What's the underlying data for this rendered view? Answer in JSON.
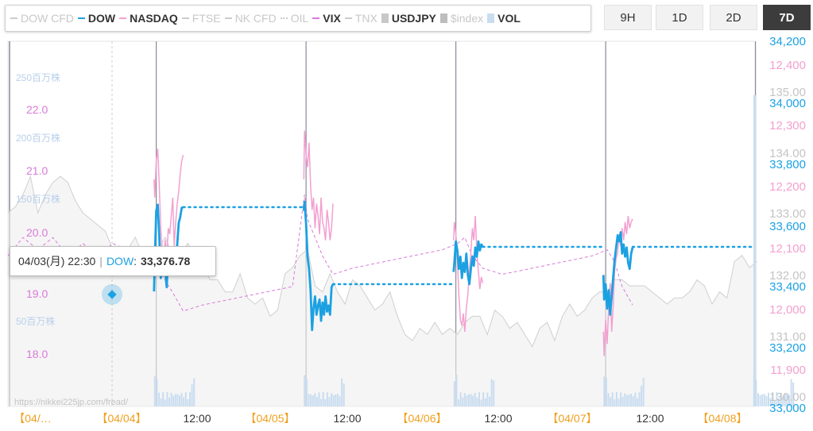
{
  "legend": [
    {
      "label": "DOW CFD",
      "color": "#cccccc",
      "style": "line",
      "active": false
    },
    {
      "label": "DOW",
      "color": "#1ba1e2",
      "style": "line",
      "active": true
    },
    {
      "label": "NASDAQ",
      "color": "#f3a0d0",
      "style": "line",
      "active": true
    },
    {
      "label": "FTSE",
      "color": "#cccccc",
      "style": "line",
      "active": false
    },
    {
      "label": "NK CFD",
      "color": "#cccccc",
      "style": "line",
      "active": false
    },
    {
      "label": "OIL",
      "color": "#cccccc",
      "style": "dot",
      "active": false
    },
    {
      "label": "VIX",
      "color": "#d97ad9",
      "style": "dash",
      "active": true
    },
    {
      "label": "TNX",
      "color": "#cccccc",
      "style": "dash",
      "active": false
    },
    {
      "label": "USDJPY",
      "color": "#c8c8c8",
      "style": "box",
      "active": true
    },
    {
      "label": "$index",
      "color": "#bdbdbd",
      "style": "box",
      "active": false
    },
    {
      "label": "VOL",
      "color": "#c9ddf0",
      "style": "box",
      "active": true
    }
  ],
  "range_buttons": [
    {
      "label": "9H",
      "active": false
    },
    {
      "label": "1D",
      "active": false
    },
    {
      "label": "2D",
      "active": false
    },
    {
      "label": "7D",
      "active": true
    }
  ],
  "tooltip": {
    "time": "04/03(月) 22:30",
    "series": "DOW",
    "value": "33,376.78"
  },
  "watermark": "https://nikkei225jp.com/fread/",
  "chart_data": {
    "type": "line",
    "x_ticks": [
      "【04/…",
      "【04/04】",
      "12:00",
      "【04/05】",
      "12:00",
      "【04/06】",
      "12:00",
      "【04/07】",
      "12:00",
      "【04/08】"
    ],
    "axes": {
      "dow": {
        "side": "right",
        "color": "#1ba1e2",
        "ticks": [
          "34,200",
          "34,000",
          "33,800",
          "33,600",
          "33,400",
          "33,200",
          "33,000"
        ],
        "range": [
          33000,
          34200
        ]
      },
      "nasdaq": {
        "side": "right",
        "color": "#f3a0d0",
        "ticks": [
          "12,400",
          "12,300",
          "12,200",
          "12,100",
          "12,000",
          "11,900"
        ],
        "range": [
          11900,
          12400
        ]
      },
      "usdjpy": {
        "side": "right",
        "color": "#c4c4c4",
        "ticks": [
          "135.00",
          "134.00",
          "133.00",
          "132.00",
          "131.00",
          "130.00"
        ],
        "range": [
          130,
          135
        ]
      },
      "vix": {
        "side": "left",
        "color": "#d97ad9",
        "ticks": [
          "22.0",
          "21.0",
          "20.0",
          "19.0",
          "18.0"
        ],
        "range": [
          18,
          22
        ]
      },
      "vol": {
        "side": "left",
        "color": "#b8d0ea",
        "ticks": [
          "250百万株",
          "200百万株",
          "150百万株",
          "50百万株"
        ]
      }
    },
    "series": [
      {
        "name": "DOW",
        "color": "#1ba1e2",
        "segments": [
          {
            "t": [
              0.975,
              0.98,
              0.99,
              1.0,
              1.01,
              1.02,
              1.03,
              1.04,
              1.05,
              1.06,
              1.07,
              1.08,
              1.09,
              1.1,
              1.11,
              1.12,
              1.13,
              1.14,
              1.15,
              1.16,
              1.17
            ],
            "v": [
              33376,
              33470,
              33640,
              33660,
              33560,
              33420,
              33480,
              33520,
              33440,
              33390,
              33500,
              33460,
              33430,
              33440,
              33490,
              33460,
              33530,
              33600,
              33620,
              33650,
              33652
            ]
          },
          {
            "t": [
              1.975,
              1.98,
              1.99,
              2.0,
              2.01,
              2.02,
              2.03,
              2.04,
              2.05,
              2.06,
              2.07,
              2.08,
              2.09,
              2.1,
              2.11,
              2.12,
              2.13,
              2.14,
              2.15,
              2.16,
              2.17
            ],
            "v": [
              33640,
              33670,
              33600,
              33490,
              33450,
              33380,
              33250,
              33320,
              33360,
              33300,
              33330,
              33350,
              33280,
              33340,
              33300,
              33360,
              33310,
              33330,
              33300,
              33390,
              33400
            ]
          },
          {
            "t": [
              2.975,
              2.98,
              2.99,
              3.0,
              3.01,
              3.02,
              3.03,
              3.04,
              3.05,
              3.06,
              3.07,
              3.08,
              3.09,
              3.1,
              3.11,
              3.12,
              3.13,
              3.14,
              3.15,
              3.16,
              3.17
            ],
            "v": [
              33440,
              33470,
              33540,
              33510,
              33450,
              33490,
              33420,
              33470,
              33440,
              33500,
              33430,
              33400,
              33450,
              33490,
              33460,
              33520,
              33490,
              33540,
              33510,
              33530,
              33522
            ]
          },
          {
            "t": [
              3.975,
              3.98,
              3.99,
              4.0,
              4.01,
              4.02,
              4.03,
              4.04,
              4.05,
              4.06,
              4.07,
              4.08,
              4.09,
              4.1,
              4.11,
              4.12,
              4.13,
              4.14,
              4.15,
              4.16,
              4.17
            ],
            "v": [
              33430,
              33350,
              33400,
              33320,
              33380,
              33300,
              33360,
              33420,
              33480,
              33520,
              33560,
              33540,
              33570,
              33500,
              33530,
              33490,
              33520,
              33470,
              33450,
              33500,
              33520
            ]
          }
        ],
        "flat": [
          {
            "from": 1.17,
            "to": 1.975,
            "v": 33652
          },
          {
            "from": 2.17,
            "to": 2.975,
            "v": 33400
          },
          {
            "from": 3.17,
            "to": 3.975,
            "v": 33522
          },
          {
            "from": 4.17,
            "to": 5.0,
            "v": 33522
          }
        ]
      },
      {
        "name": "NASDAQ",
        "color": "#f3a0d0",
        "segments": [
          {
            "t": [
              0.975,
              0.98,
              0.99,
              1.0,
              1.01,
              1.02,
              1.03,
              1.04,
              1.05,
              1.06,
              1.07,
              1.08,
              1.09,
              1.1,
              1.11,
              1.12,
              1.13,
              1.14,
              1.15,
              1.16,
              1.17
            ],
            "v": [
              12210,
              12180,
              12240,
              12260,
              12200,
              12130,
              12090,
              12060,
              12110,
              12080,
              12130,
              12120,
              12150,
              12180,
              12100,
              12140,
              12170,
              12190,
              12220,
              12240,
              12250
            ]
          },
          {
            "t": [
              1.975,
              1.98,
              1.99,
              2.0,
              2.01,
              2.02,
              2.03,
              2.04,
              2.05,
              2.06,
              2.07,
              2.08,
              2.09,
              2.1,
              2.11,
              2.12,
              2.13,
              2.14,
              2.15,
              2.16,
              2.17
            ],
            "v": [
              12210,
              12290,
              12250,
              12230,
              12270,
              12200,
              12160,
              12180,
              12130,
              12170,
              12150,
              12120,
              12180,
              12140,
              12130,
              12110,
              12160,
              12140,
              12110,
              12130,
              12170
            ]
          },
          {
            "t": [
              2.975,
              2.98,
              2.99,
              3.0,
              3.01,
              3.02,
              3.03,
              3.04,
              3.05,
              3.06,
              3.07,
              3.08,
              3.09,
              3.1,
              3.11,
              3.12,
              3.13,
              3.14,
              3.15,
              3.16,
              3.17
            ],
            "v": [
              12110,
              12140,
              12120,
              12080,
              12020,
              11980,
              11970,
              11990,
              11960,
              12000,
              12020,
              12060,
              12090,
              12130,
              12110,
              12150,
              12090,
              12060,
              12030,
              12050,
              12040
            ]
          },
          {
            "t": [
              3.975,
              3.98,
              3.99,
              4.0,
              4.01,
              4.02,
              4.03,
              4.04,
              4.05,
              4.06,
              4.07,
              4.08,
              4.09,
              4.1,
              4.11,
              4.12,
              4.13,
              4.14,
              4.15,
              4.16,
              4.17
            ],
            "v": [
              11960,
              11920,
              11980,
              11940,
              12000,
              12040,
              11960,
              12000,
              12060,
              12080,
              12090,
              12120,
              12100,
              12130,
              12110,
              12140,
              12120,
              12150,
              12130,
              12140,
              12145
            ]
          }
        ]
      },
      {
        "name": "VIX",
        "color": "#d97ad9",
        "points": {
          "t": [
            0.0,
            0.1,
            0.2,
            0.3,
            0.4,
            0.5,
            0.6,
            0.7,
            0.8,
            0.9,
            0.975,
            1.0,
            1.05,
            1.1,
            1.17,
            1.3,
            1.5,
            1.7,
            1.9,
            1.98,
            2.0,
            2.05,
            2.1,
            2.17,
            2.3,
            2.5,
            2.7,
            2.9,
            3.0,
            3.05,
            3.1,
            3.17,
            3.3,
            3.5,
            3.7,
            3.9,
            4.0,
            4.05,
            4.1,
            4.17
          ],
          "v": [
            19.6,
            19.9,
            19.7,
            19.9,
            19.6,
            19.8,
            19.6,
            19.8,
            19.7,
            19.5,
            19.3,
            19.4,
            19.2,
            19.0,
            18.7,
            18.8,
            18.9,
            19.0,
            19.1,
            20.6,
            20.2,
            19.9,
            19.6,
            19.3,
            19.4,
            19.5,
            19.6,
            19.7,
            19.8,
            19.9,
            19.6,
            19.4,
            19.3,
            19.4,
            19.5,
            19.6,
            19.7,
            19.5,
            19.1,
            18.8
          ]
        }
      },
      {
        "name": "USDJPY",
        "color": "#d7d7d7",
        "points": {
          "t": [
            0.0,
            0.05,
            0.1,
            0.15,
            0.2,
            0.25,
            0.3,
            0.35,
            0.4,
            0.45,
            0.5,
            0.55,
            0.6,
            0.65,
            0.7,
            0.75,
            0.8,
            0.85,
            0.9,
            0.95,
            1.0,
            1.05,
            1.1,
            1.15,
            1.2,
            1.25,
            1.3,
            1.35,
            1.4,
            1.45,
            1.5,
            1.55,
            1.6,
            1.65,
            1.7,
            1.75,
            1.8,
            1.85,
            1.9,
            1.95,
            2.0,
            2.05,
            2.1,
            2.15,
            2.2,
            2.25,
            2.3,
            2.35,
            2.4,
            2.45,
            2.5,
            2.55,
            2.6,
            2.65,
            2.7,
            2.75,
            2.8,
            2.85,
            2.9,
            2.95,
            3.0,
            3.05,
            3.1,
            3.15,
            3.2,
            3.25,
            3.3,
            3.35,
            3.4,
            3.45,
            3.5,
            3.55,
            3.6,
            3.65,
            3.7,
            3.75,
            3.8,
            3.85,
            3.9,
            3.95,
            4.0,
            4.05,
            4.1,
            4.15,
            4.2,
            4.25,
            4.3,
            4.35,
            4.4,
            4.45,
            4.5,
            4.55,
            4.6,
            4.65,
            4.7,
            4.75,
            4.8,
            4.85,
            4.9,
            4.95,
            5.0
          ],
          "v": [
            133.0,
            133.1,
            133.3,
            133.6,
            133.0,
            133.3,
            133.5,
            133.6,
            133.5,
            133.2,
            133.0,
            132.9,
            132.8,
            132.7,
            132.4,
            132.2,
            132.4,
            132.6,
            132.3,
            132.1,
            132.4,
            132.6,
            132.3,
            132.3,
            132.5,
            132.3,
            132.1,
            131.9,
            131.9,
            131.7,
            131.7,
            132.0,
            131.6,
            131.5,
            131.6,
            131.3,
            131.4,
            132.0,
            132.1,
            132.3,
            132.4,
            131.8,
            131.7,
            132.0,
            131.7,
            131.5,
            131.9,
            131.8,
            131.6,
            131.4,
            131.5,
            131.7,
            131.3,
            131.0,
            130.9,
            131.1,
            131.0,
            131.2,
            131.0,
            131.1,
            131.0,
            131.2,
            131.3,
            131.3,
            131.0,
            131.4,
            131.3,
            131.1,
            131.2,
            131.0,
            130.8,
            131.1,
            131.2,
            130.9,
            131.3,
            131.5,
            131.3,
            131.4,
            131.6,
            131.7,
            131.7,
            131.9,
            131.9,
            131.8,
            131.8,
            131.8,
            131.7,
            131.6,
            131.5,
            131.6,
            131.6,
            131.7,
            131.9,
            131.8,
            131.5,
            131.7,
            131.6,
            132.2,
            132.3,
            132.1,
            132.2
          ]
        }
      }
    ],
    "vol_sessions": [
      0.975,
      1.975,
      2.975,
      3.975,
      4.975
    ]
  }
}
